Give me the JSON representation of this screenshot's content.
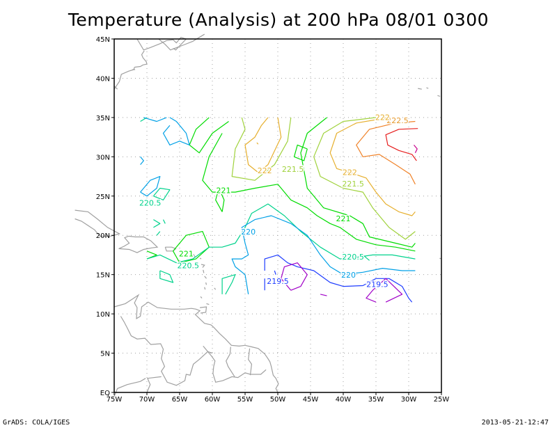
{
  "chart_data": {
    "type": "contour-map",
    "title": "Temperature (Analysis) at 200 hPa 08/01 0300",
    "x_ticks": [
      "75W",
      "70W",
      "65W",
      "60W",
      "55W",
      "50W",
      "45W",
      "40W",
      "35W",
      "30W",
      "25W"
    ],
    "y_ticks": [
      "EQ",
      "5N",
      "10N",
      "15N",
      "20N",
      "25N",
      "30N",
      "35N",
      "40N",
      "45N"
    ],
    "xlim": [
      -75,
      -25
    ],
    "ylim": [
      0,
      45
    ],
    "grid": true,
    "contour_levels": [
      219,
      219.5,
      220,
      220.5,
      221,
      221.5,
      222,
      222.5
    ],
    "contour_labels": [
      {
        "text": "222.5",
        "lon": -31.7,
        "lat": 34.3,
        "color": "#e69a2e"
      },
      {
        "text": "222",
        "lon": -34.0,
        "lat": 34.7,
        "color": "#e6af2d"
      },
      {
        "text": "222",
        "lon": -52.0,
        "lat": 27.9,
        "color": "#e6af2d"
      },
      {
        "text": "221.5",
        "lon": -47.7,
        "lat": 28.1,
        "color": "#a0d23c"
      },
      {
        "text": "222",
        "lon": -39.0,
        "lat": 27.7,
        "color": "#e6af2d"
      },
      {
        "text": "221.5",
        "lon": -38.5,
        "lat": 26.2,
        "color": "#a0d23c"
      },
      {
        "text": "221",
        "lon": -58.3,
        "lat": 25.4,
        "color": "#00dc00"
      },
      {
        "text": "221",
        "lon": -40.0,
        "lat": 21.8,
        "color": "#00dc00"
      },
      {
        "text": "220.5",
        "lon": -69.5,
        "lat": 23.8,
        "color": "#00d28c"
      },
      {
        "text": "220",
        "lon": -54.5,
        "lat": 20.1,
        "color": "#00a0e6"
      },
      {
        "text": "221",
        "lon": -64.0,
        "lat": 17.3,
        "color": "#00dc00"
      },
      {
        "text": "220.5",
        "lon": -63.7,
        "lat": 15.8,
        "color": "#00d28c"
      },
      {
        "text": "220.5",
        "lon": -38.5,
        "lat": 16.9,
        "color": "#00d28c"
      },
      {
        "text": "220",
        "lon": -39.2,
        "lat": 14.6,
        "color": "#00a0e6"
      },
      {
        "text": "219.5",
        "lon": -34.8,
        "lat": 13.4,
        "color": "#1e3cff"
      },
      {
        "text": "219.5",
        "lon": -50.0,
        "lat": 13.8,
        "color": "#1e3cff"
      }
    ]
  },
  "footer": {
    "left": "GrADS: COLA/IGES",
    "right": "2013-05-21-12:47"
  },
  "colors": {
    "frame": "#000000",
    "coast": "#a0a0a0",
    "grid": "#a0a0a0",
    "c219": "#a000c8",
    "c2195": "#1e3cff",
    "c220": "#00a0e6",
    "c2205": "#00d28c",
    "c221": "#00dc00",
    "c2215": "#a0d23c",
    "c222": "#e6af2d",
    "c2225": "#f08228",
    "c223": "#e61e1e",
    "c2235": "#c8008c"
  }
}
